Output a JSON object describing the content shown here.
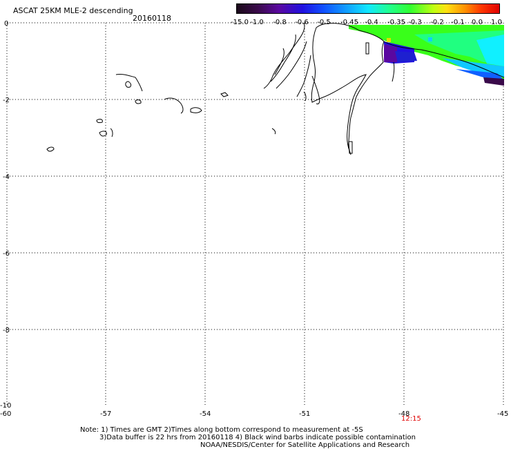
{
  "header": {
    "title": "ASCAT 25KM MLE-2 descending",
    "date": "20160118"
  },
  "colorbar": {
    "labels": [
      "-15.0",
      "-1.0",
      "-0.8",
      "-0.6",
      "-0.5",
      "-0.45",
      "-0.4",
      "-0.35",
      "-0.3",
      "-0.2",
      "-0.1",
      "0.0",
      "1.0"
    ]
  },
  "axes": {
    "x_ticks": [
      "-60",
      "-57",
      "-54",
      "-51",
      "-48",
      "-45"
    ],
    "y_ticks": [
      "0",
      "-2",
      "-4",
      "-6",
      "-8",
      "-10"
    ],
    "time_label": "12:15"
  },
  "footer": {
    "line1": "Note: 1) Times are GMT 2)Times along bottom correspond to measurement at -5S",
    "line2": "3)Data buffer is 22 hrs from 20160118 4) Black wind barbs indicate possible contamination",
    "line3": "NOAA/NESDIS/Center for Satellite Applications and Research"
  },
  "map": {
    "lon_range": [
      -60,
      -45
    ],
    "lat_range": [
      -10,
      0
    ],
    "grid": "dotted"
  }
}
